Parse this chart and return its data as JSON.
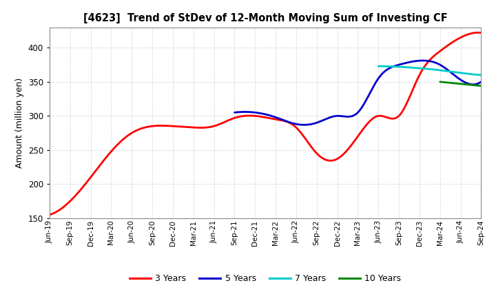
{
  "title": "[4623]  Trend of StDev of 12-Month Moving Sum of Investing CF",
  "ylabel": "Amount (million yen)",
  "ylim": [
    150,
    430
  ],
  "yticks": [
    150,
    200,
    250,
    300,
    350,
    400
  ],
  "background_color": "#ffffff",
  "plot_bg_color": "#ffffff",
  "grid_color": "#999999",
  "line_width": 2.0,
  "xtick_labels": [
    "Jun-19",
    "Sep-19",
    "Dec-19",
    "Mar-20",
    "Jun-20",
    "Sep-20",
    "Dec-20",
    "Mar-21",
    "Jun-21",
    "Sep-21",
    "Dec-21",
    "Mar-22",
    "Jun-22",
    "Sep-22",
    "Dec-22",
    "Mar-23",
    "Jun-23",
    "Sep-23",
    "Dec-23",
    "Mar-24",
    "Jun-24",
    "Sep-24"
  ],
  "legend_labels": [
    "3 Years",
    "5 Years",
    "7 Years",
    "10 Years"
  ],
  "legend_colors": [
    "#ff0000",
    "#0000cc",
    "#00cccc",
    "#008800"
  ]
}
